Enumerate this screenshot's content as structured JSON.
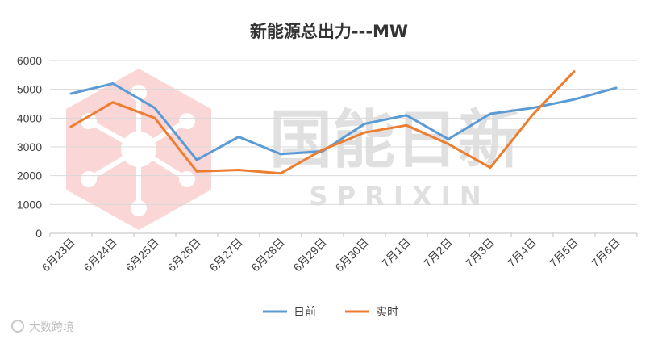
{
  "chart_data": {
    "type": "line",
    "title": "新能源总出力---MW",
    "xlabel": "",
    "ylabel": "",
    "categories": [
      "6月23日",
      "6月24日",
      "6月25日",
      "6月26日",
      "6月27日",
      "6月28日",
      "6月29日",
      "6月30日",
      "7月1日",
      "7月2日",
      "7月3日",
      "7月4日",
      "7月5日",
      "7月6日"
    ],
    "ylim": [
      0,
      6000
    ],
    "yticks": [
      0,
      1000,
      2000,
      3000,
      4000,
      5000,
      6000
    ],
    "grid": true,
    "legend": "bottom",
    "series": [
      {
        "name": "日前",
        "color": "#5B9BD5",
        "values": [
          4850,
          5200,
          4350,
          2550,
          3350,
          2750,
          2850,
          3800,
          4100,
          3270,
          4150,
          4350,
          4650,
          5050
        ]
      },
      {
        "name": "实时",
        "color": "#ED7D31",
        "values": [
          3700,
          4550,
          4000,
          2150,
          2200,
          2080,
          2900,
          3500,
          3750,
          3100,
          2280,
          4100,
          5620,
          null
        ]
      }
    ]
  },
  "watermark": {
    "logo_text": "国能日新",
    "logo_latin": "S P R I X I N",
    "source_text": "大数跨境"
  }
}
